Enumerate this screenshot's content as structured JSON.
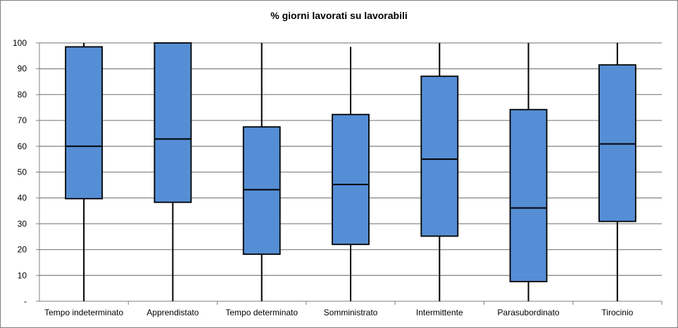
{
  "chart_data": {
    "type": "boxplot",
    "title": "% giorni lavorati su lavorabili",
    "xlabel": "",
    "ylabel": "",
    "ylim": [
      0,
      100
    ],
    "yticks": [
      0,
      10,
      20,
      30,
      40,
      50,
      60,
      70,
      80,
      90,
      100
    ],
    "ytick_labels": [
      "-",
      "10",
      "20",
      "30",
      "40",
      "50",
      "60",
      "70",
      "80",
      "90",
      "100"
    ],
    "grid": true,
    "box_color": "#558ed5",
    "grid_color": "#8c8c8c",
    "categories": [
      "Tempo indeterminato",
      "Apprendistato",
      "Tempo determinato",
      "Somministrato",
      "Intermittente",
      "Parasubordinato",
      "Tirocinio"
    ],
    "series": [
      {
        "category": "Tempo indeterminato",
        "min": 0,
        "q1": 39.7,
        "median": 60.0,
        "q3": 98.5,
        "max": 100
      },
      {
        "category": "Apprendistato",
        "min": 0,
        "q1": 38.3,
        "median": 62.8,
        "q3": 100,
        "max": 100
      },
      {
        "category": "Tempo determinato",
        "min": 0,
        "q1": 18.2,
        "median": 43.2,
        "q3": 67.5,
        "max": 100
      },
      {
        "category": "Somministrato",
        "min": 0,
        "q1": 22.0,
        "median": 45.2,
        "q3": 72.3,
        "max": 98.5
      },
      {
        "category": "Intermittente",
        "min": 0,
        "q1": 25.2,
        "median": 55.0,
        "q3": 87.1,
        "max": 100
      },
      {
        "category": "Parasubordinato",
        "min": 0,
        "q1": 7.6,
        "median": 36.1,
        "q3": 74.2,
        "max": 100
      },
      {
        "category": "Tirocinio",
        "min": 0,
        "q1": 30.9,
        "median": 60.9,
        "q3": 91.5,
        "max": 100
      }
    ]
  }
}
